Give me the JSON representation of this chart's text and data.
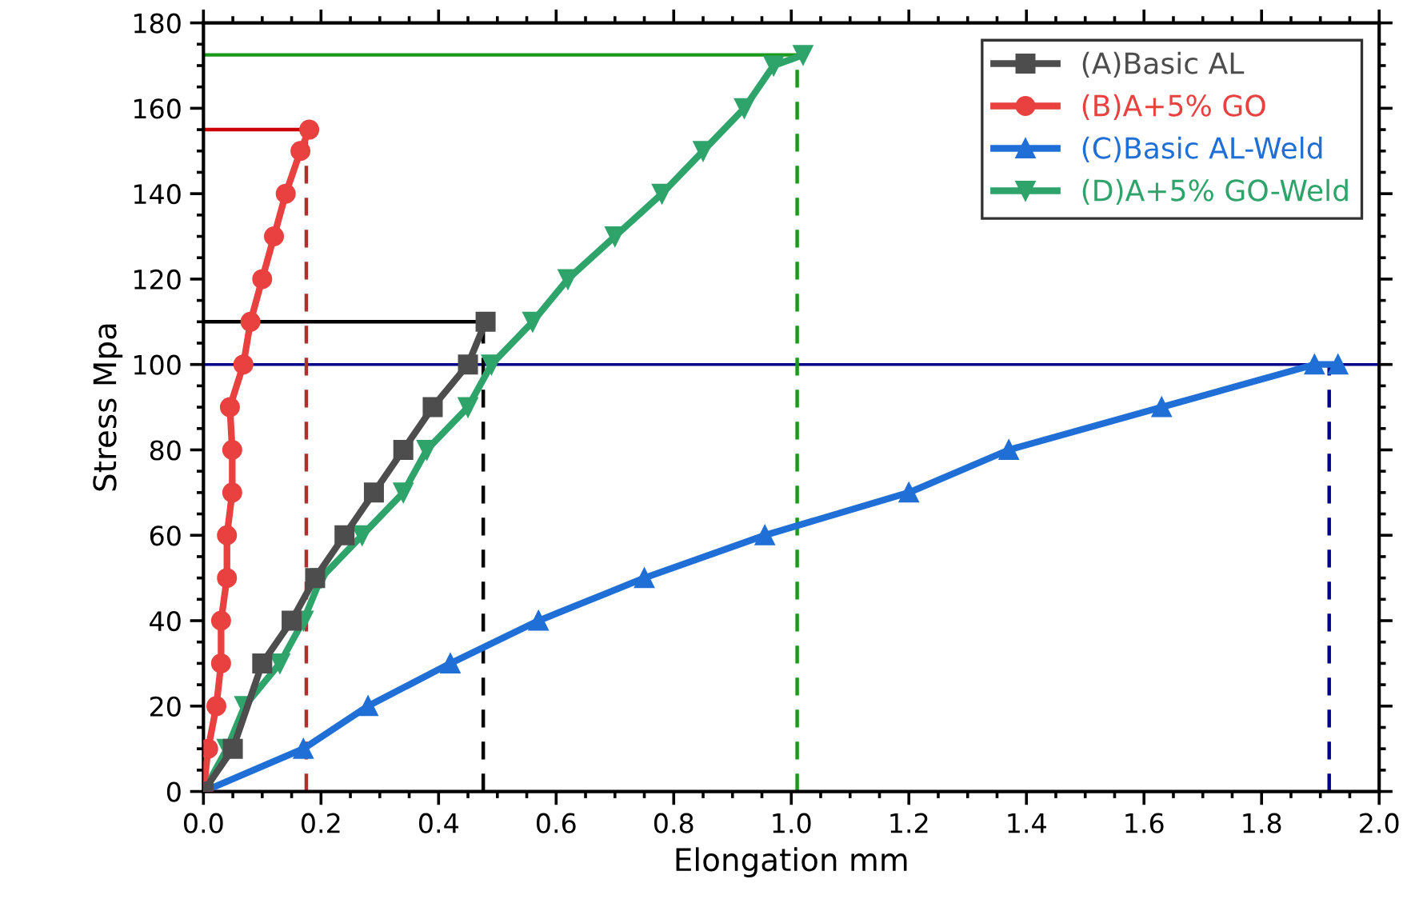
{
  "chart_data": {
    "type": "line",
    "xlabel": "Elongation mm",
    "ylabel": "Stress Mpa",
    "xlim": [
      0,
      2.0
    ],
    "ylim": [
      0,
      180
    ],
    "xticks": [
      {
        "value": 0,
        "label": "0.0"
      },
      {
        "value": 0.2,
        "label": "0.2"
      },
      {
        "value": 0.4,
        "label": "0.4"
      },
      {
        "value": 0.6,
        "label": "0.6"
      },
      {
        "value": 0.8,
        "label": "0.8"
      },
      {
        "value": 1.0,
        "label": "1.0"
      },
      {
        "value": 1.2,
        "label": "1.2"
      },
      {
        "value": 1.4,
        "label": "1.4"
      },
      {
        "value": 1.6,
        "label": "1.6"
      },
      {
        "value": 1.8,
        "label": "1.8"
      },
      {
        "value": 2.0,
        "label": "2.0"
      }
    ],
    "yticks": [
      0,
      20,
      40,
      60,
      80,
      100,
      120,
      140,
      160,
      180
    ],
    "grid": false,
    "legend": "top right",
    "ref_lines": [
      {
        "axis": "y",
        "value": 100,
        "color": "#00008b",
        "line_style": "solid"
      }
    ],
    "series": [
      {
        "name": "(A)Basic AL",
        "color": "#4d4d4d",
        "marker": "square",
        "x": [
          0,
          0.05,
          0.1,
          0.15,
          0.19,
          0.24,
          0.29,
          0.34,
          0.39,
          0.45,
          0.48
        ],
        "values": [
          0,
          10,
          30,
          40,
          50,
          60,
          70,
          80,
          90,
          100,
          110
        ]
      },
      {
        "name": "(B)A+5% GO",
        "color": "#e8413f",
        "marker": "circle",
        "x": [
          0,
          0.008,
          0.022,
          0.03,
          0.03,
          0.04,
          0.04,
          0.049,
          0.049,
          0.045,
          0.068,
          0.08,
          0.1,
          0.12,
          0.14,
          0.165,
          0.18
        ],
        "values": [
          0,
          10,
          20,
          30,
          40,
          50,
          60,
          70,
          80,
          90,
          100,
          110,
          120,
          130,
          140,
          150,
          155
        ]
      },
      {
        "name": "(C)Basic AL-Weld",
        "color": "#1f6fd6",
        "marker": "triangle",
        "x": [
          0,
          0.17,
          0.28,
          0.42,
          0.57,
          0.75,
          0.955,
          1.2,
          1.37,
          1.63,
          1.89,
          1.93
        ],
        "values": [
          0,
          10,
          20,
          30,
          40,
          50,
          60,
          70,
          80,
          90,
          100,
          100
        ]
      },
      {
        "name": "(D)A+5% GO-Weld",
        "color": "#2ea36a",
        "marker": "triangle_down",
        "x": [
          0,
          0.04,
          0.07,
          0.13,
          0.17,
          0.2,
          0.27,
          0.34,
          0.38,
          0.45,
          0.49,
          0.56,
          0.62,
          0.7,
          0.78,
          0.85,
          0.92,
          0.97,
          1.02
        ],
        "values": [
          0,
          10,
          20,
          30,
          40,
          50,
          60,
          70,
          80,
          90,
          100,
          110,
          120,
          130,
          140,
          150,
          160,
          170,
          172.5
        ]
      },
      {
        "color": "#000000",
        "marker": "none",
        "line_style": "solid",
        "x": [
          0,
          0.48
        ],
        "values": [
          110,
          110
        ]
      },
      {
        "color": "#000000",
        "marker": "none",
        "line_style": "dashed",
        "x": [
          0.476,
          0.476
        ],
        "values": [
          0,
          110
        ]
      },
      {
        "color": "#cc0000",
        "marker": "none",
        "line_style": "solid",
        "x": [
          0,
          0.18
        ],
        "values": [
          155,
          155
        ]
      },
      {
        "color": "#b03030",
        "marker": "none",
        "line_style": "dashed",
        "x": [
          0.175,
          0.175
        ],
        "values": [
          0,
          155
        ]
      },
      {
        "color": "#1a9a1a",
        "marker": "none",
        "line_style": "solid",
        "x": [
          0,
          1.02
        ],
        "values": [
          172.5,
          172.5
        ]
      },
      {
        "color": "#1a9a1a",
        "marker": "none",
        "line_style": "dashed",
        "x": [
          1.01,
          1.01
        ],
        "values": [
          0,
          172.5
        ]
      },
      {
        "color": "#00008b",
        "marker": "none",
        "line_style": "dashed",
        "x": [
          1.915,
          1.915
        ],
        "values": [
          0,
          100
        ]
      }
    ]
  }
}
